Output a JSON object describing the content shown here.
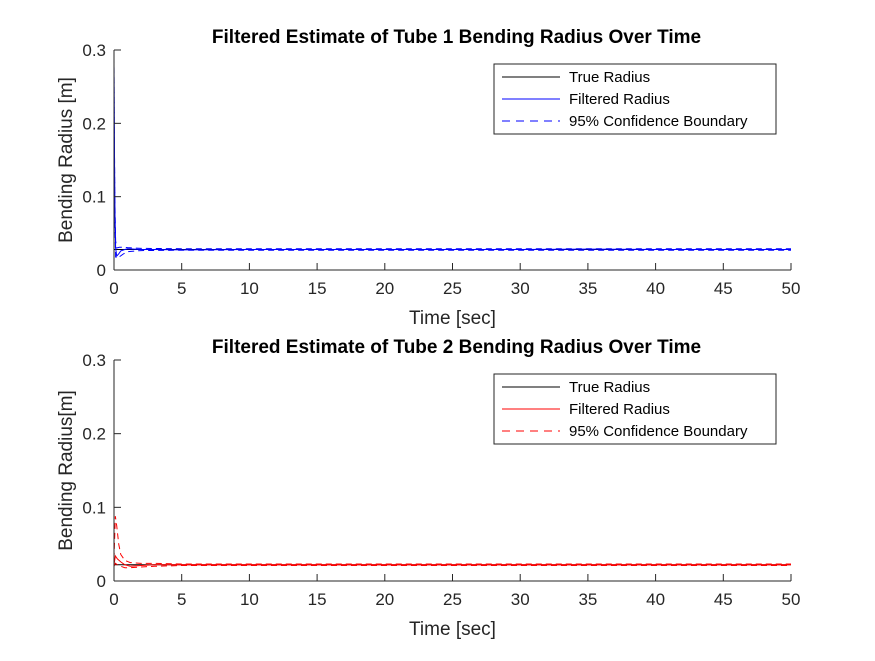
{
  "chart_data": [
    {
      "type": "line",
      "title": "Filtered Estimate of Tube 1 Bending Radius Over Time",
      "xlabel": "Time [sec]",
      "ylabel": "Bending Radius [m]",
      "xlim": [
        0,
        50
      ],
      "ylim": [
        0,
        0.3
      ],
      "xticks": [
        "0",
        "5",
        "10",
        "15",
        "20",
        "25",
        "30",
        "35",
        "40",
        "45",
        "50"
      ],
      "yticks": [
        "0",
        "0.1",
        "0.2",
        "0.3"
      ],
      "grid": false,
      "legend_position": "top-right",
      "series": [
        {
          "name": "True Radius",
          "color": "#000000",
          "style": "solid",
          "x": [
            0,
            0.5,
            1,
            2,
            5,
            10,
            20,
            30,
            40,
            50
          ],
          "y": [
            0.028,
            0.028,
            0.028,
            0.028,
            0.028,
            0.028,
            0.028,
            0.028,
            0.028,
            0.028
          ]
        },
        {
          "name": "Filtered Radius",
          "color": "#0000ff",
          "style": "solid",
          "x": [
            0,
            0.02,
            0.06,
            0.12,
            0.2,
            0.35,
            0.5,
            0.8,
            1.0,
            1.5,
            2,
            3,
            5,
            10,
            20,
            30,
            35,
            40,
            50
          ],
          "y": [
            0.282,
            0.2,
            0.09,
            0.03,
            0.019,
            0.022,
            0.026,
            0.028,
            0.029,
            0.0285,
            0.028,
            0.028,
            0.0275,
            0.028,
            0.028,
            0.028,
            0.0285,
            0.028,
            0.028
          ]
        },
        {
          "name": "95% Confidence Boundary",
          "color": "#0000ff",
          "style": "dashed",
          "x": [
            0,
            0.02,
            0.06,
            0.12,
            0.2,
            0.4,
            0.7,
            1.0,
            2,
            5,
            10,
            20,
            30,
            40,
            50
          ],
          "y": [
            0.29,
            0.21,
            0.1,
            0.04,
            0.03,
            0.031,
            0.031,
            0.0305,
            0.0295,
            0.029,
            0.029,
            0.029,
            0.029,
            0.029,
            0.029
          ]
        },
        {
          "name": "",
          "color": "#0000ff",
          "style": "dashed",
          "x": [
            0,
            0.02,
            0.06,
            0.12,
            0.2,
            0.4,
            0.7,
            1.0,
            2,
            5,
            10,
            20,
            30,
            40,
            50
          ],
          "y": [
            0.27,
            0.19,
            0.08,
            0.018,
            0.016,
            0.018,
            0.022,
            0.025,
            0.0265,
            0.027,
            0.027,
            0.027,
            0.027,
            0.027,
            0.027
          ]
        }
      ]
    },
    {
      "type": "line",
      "title": "Filtered Estimate of Tube 2 Bending Radius Over Time",
      "xlabel": "Time [sec]",
      "ylabel": "Bending Radius[m]",
      "xlim": [
        0,
        50
      ],
      "ylim": [
        0,
        0.3
      ],
      "xticks": [
        "0",
        "5",
        "10",
        "15",
        "20",
        "25",
        "30",
        "35",
        "40",
        "45",
        "50"
      ],
      "yticks": [
        "0",
        "0.1",
        "0.2",
        "0.3"
      ],
      "grid": false,
      "legend_position": "top-right",
      "series": [
        {
          "name": "True Radius",
          "color": "#000000",
          "style": "solid",
          "x": [
            0,
            0.5,
            1,
            2,
            5,
            10,
            20,
            30,
            40,
            50
          ],
          "y": [
            0.022,
            0.022,
            0.022,
            0.022,
            0.022,
            0.022,
            0.022,
            0.022,
            0.022,
            0.022
          ]
        },
        {
          "name": "Filtered Radius",
          "color": "#ff0000",
          "style": "solid",
          "x": [
            0,
            0.1,
            0.25,
            0.5,
            0.8,
            1.2,
            2,
            3,
            5,
            10,
            20,
            30,
            40,
            50
          ],
          "y": [
            0.022,
            0.034,
            0.03,
            0.026,
            0.022,
            0.02,
            0.021,
            0.022,
            0.022,
            0.022,
            0.022,
            0.022,
            0.022,
            0.022
          ]
        },
        {
          "name": "95% Confidence Boundary",
          "color": "#ff0000",
          "style": "dashed",
          "x": [
            0,
            0.1,
            0.2,
            0.35,
            0.5,
            0.8,
            1.2,
            2,
            3,
            5,
            10,
            20,
            30,
            40,
            50
          ],
          "y": [
            0.03,
            0.088,
            0.075,
            0.05,
            0.036,
            0.028,
            0.025,
            0.024,
            0.024,
            0.023,
            0.023,
            0.023,
            0.023,
            0.023,
            0.023
          ]
        },
        {
          "name": "",
          "color": "#ff0000",
          "style": "dashed",
          "x": [
            0,
            0.1,
            0.25,
            0.5,
            0.8,
            1.2,
            2,
            3,
            5,
            10,
            20,
            30,
            40,
            50
          ],
          "y": [
            0.02,
            0.024,
            0.022,
            0.02,
            0.018,
            0.018,
            0.019,
            0.02,
            0.021,
            0.021,
            0.021,
            0.021,
            0.021,
            0.021
          ]
        }
      ]
    }
  ]
}
